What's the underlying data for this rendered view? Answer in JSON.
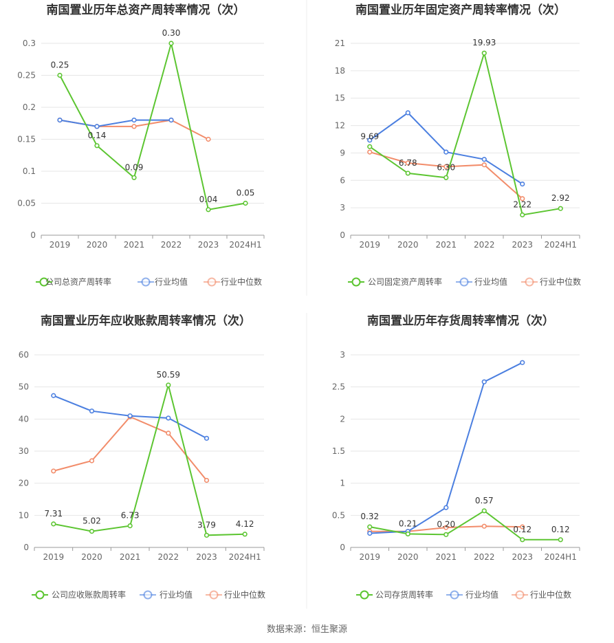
{
  "source": "数据来源：恒生聚源",
  "colors": {
    "company": "#5cc531",
    "avg": "#4b7fe0",
    "median": "#f28c6a"
  },
  "chart_data": [
    {
      "type": "line",
      "title": "南国置业历年总资产周转率情况（次）",
      "categories": [
        "2019",
        "2020",
        "2021",
        "2022",
        "2023",
        "2024H1"
      ],
      "ylim": [
        0,
        0.3
      ],
      "yticks": [
        "0",
        "0.05",
        "0.1",
        "0.15",
        "0.2",
        "0.25",
        "0.3"
      ],
      "series": [
        {
          "name": "公司总资产周转率",
          "key": "company",
          "values": [
            0.25,
            0.14,
            0.09,
            0.3,
            0.04,
            0.05
          ],
          "labels": [
            "0.25",
            "0.14",
            "0.09",
            "0.30",
            "0.04",
            "0.05"
          ]
        },
        {
          "name": "行业均值",
          "key": "avg",
          "values": [
            0.18,
            0.17,
            0.18,
            0.18,
            null,
            null
          ]
        },
        {
          "name": "行业中位数",
          "key": "median",
          "values": [
            0.18,
            0.17,
            0.17,
            0.18,
            0.15,
            null
          ]
        }
      ]
    },
    {
      "type": "line",
      "title": "南国置业历年固定资产周转率情况（次）",
      "categories": [
        "2019",
        "2020",
        "2021",
        "2022",
        "2023",
        "2024H1"
      ],
      "ylim": [
        0,
        21
      ],
      "yticks": [
        "0",
        "3",
        "6",
        "9",
        "12",
        "15",
        "18",
        "21"
      ],
      "series": [
        {
          "name": "公司固定资产周转率",
          "key": "company",
          "values": [
            9.69,
            6.78,
            6.3,
            19.93,
            2.22,
            2.92
          ],
          "labels": [
            "9.69",
            "6.78",
            "6.30",
            "19.93",
            "2.22",
            "2.92"
          ]
        },
        {
          "name": "行业均值",
          "key": "avg",
          "values": [
            10.4,
            13.4,
            9.1,
            8.3,
            5.6,
            null
          ]
        },
        {
          "name": "行业中位数",
          "key": "median",
          "values": [
            9.1,
            7.9,
            7.5,
            7.7,
            4.0,
            null
          ]
        }
      ]
    },
    {
      "type": "line",
      "title": "南国置业历年应收账款周转率情况（次）",
      "categories": [
        "2019",
        "2020",
        "2021",
        "2022",
        "2023",
        "2024H1"
      ],
      "ylim": [
        0,
        60
      ],
      "yticks": [
        "0",
        "10",
        "20",
        "30",
        "40",
        "50",
        "60"
      ],
      "series": [
        {
          "name": "公司应收账款周转率",
          "key": "company",
          "values": [
            7.31,
            5.02,
            6.73,
            50.59,
            3.79,
            4.12
          ],
          "labels": [
            "7.31",
            "5.02",
            "6.73",
            "50.59",
            "3.79",
            "4.12"
          ]
        },
        {
          "name": "行业均值",
          "key": "avg",
          "values": [
            47.3,
            42.5,
            41.0,
            40.3,
            34.0,
            null
          ]
        },
        {
          "name": "行业中位数",
          "key": "median",
          "values": [
            23.8,
            27.0,
            40.7,
            35.6,
            20.9,
            null
          ]
        }
      ]
    },
    {
      "type": "line",
      "title": "南国置业历年存货周转率情况（次）",
      "categories": [
        "2019",
        "2020",
        "2021",
        "2022",
        "2023",
        "2024H1"
      ],
      "ylim": [
        0,
        3
      ],
      "yticks": [
        "0",
        "0.5",
        "1",
        "1.5",
        "2",
        "2.5",
        "3"
      ],
      "series": [
        {
          "name": "公司存货周转率",
          "key": "company",
          "values": [
            0.32,
            0.21,
            0.2,
            0.57,
            0.12,
            0.12
          ],
          "labels": [
            "0.32",
            "0.21",
            "0.20",
            "0.57",
            "0.12",
            "0.12"
          ]
        },
        {
          "name": "行业均值",
          "key": "avg",
          "values": [
            0.22,
            0.25,
            0.62,
            2.58,
            2.88,
            null
          ]
        },
        {
          "name": "行业中位数",
          "key": "median",
          "values": [
            0.25,
            0.25,
            0.31,
            0.33,
            0.32,
            null
          ]
        }
      ]
    }
  ]
}
